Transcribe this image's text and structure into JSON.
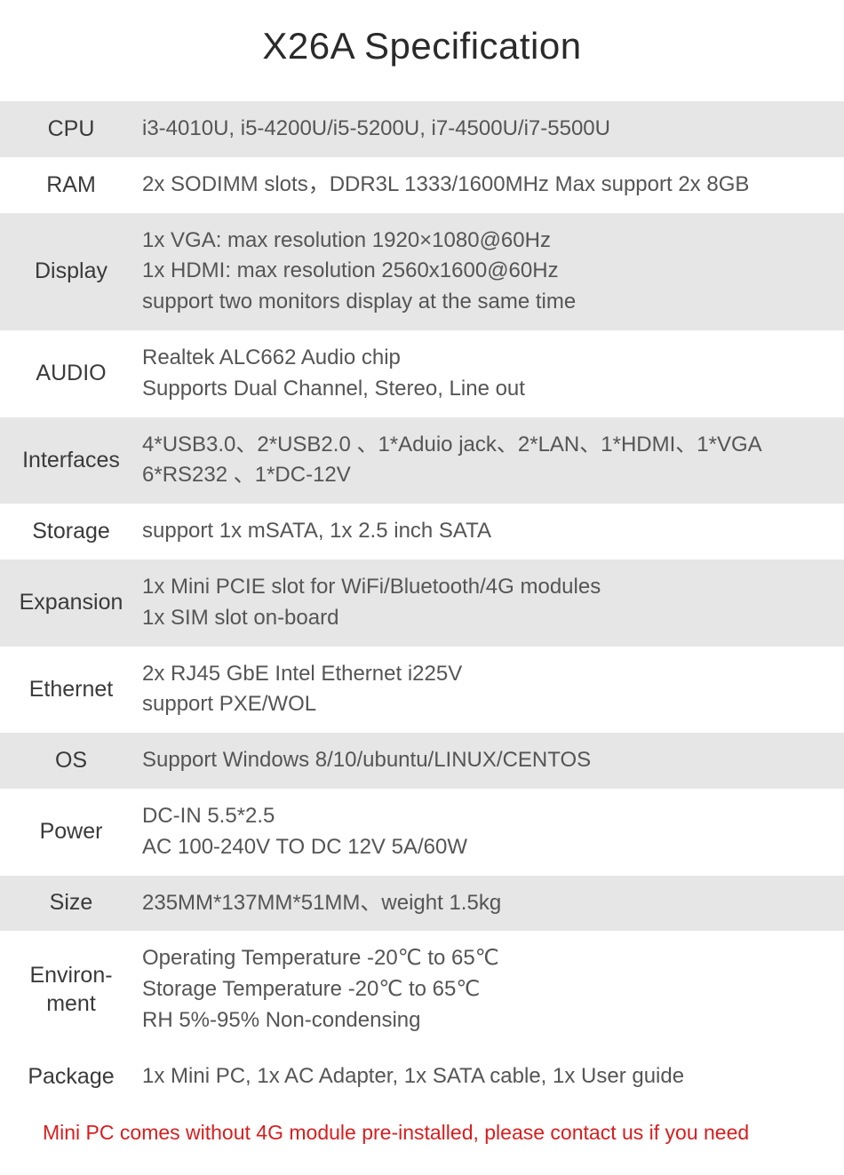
{
  "title": "X26A Specification",
  "colors": {
    "row_alt_bg": "#e6e6e6",
    "row_bg": "#ffffff",
    "title_color": "#2a2a2a",
    "label_color": "#3a3a3a",
    "value_color": "#555555",
    "footnote_color": "#d81e1e"
  },
  "typography": {
    "title_fontsize": 42,
    "label_fontsize": 25,
    "value_fontsize": 24,
    "footnote_fontsize": 23
  },
  "rows": [
    {
      "label": "CPU",
      "value": "i3-4010U, i5-4200U/i5-5200U, i7-4500U/i7-5500U",
      "alt": true
    },
    {
      "label": "RAM",
      "value": "2x SODIMM slots，DDR3L 1333/1600MHz  Max support 2x 8GB",
      "alt": false
    },
    {
      "label": "Display",
      "value": "1x VGA: max resolution 1920×1080@60Hz\n1x HDMI: max resolution 2560x1600@60Hz\nsupport two monitors display at the same time",
      "alt": true
    },
    {
      "label": "AUDIO",
      "value": "Realtek ALC662 Audio chip\nSupports Dual Channel, Stereo, Line out",
      "alt": false
    },
    {
      "label": "Interfaces",
      "value": "4*USB3.0、2*USB2.0 、1*Aduio jack、2*LAN、1*HDMI、1*VGA\n6*RS232 、1*DC-12V",
      "alt": true
    },
    {
      "label": "Storage",
      "value": "support 1x mSATA, 1x 2.5 inch SATA",
      "alt": false
    },
    {
      "label": "Expansion",
      "value": "1x Mini PCIE slot for WiFi/Bluetooth/4G modules\n1x SIM slot on-board",
      "alt": true
    },
    {
      "label": "Ethernet",
      "value": "2x RJ45 GbE Intel Ethernet i225V\nsupport PXE/WOL",
      "alt": false
    },
    {
      "label": "OS",
      "value": "Support Windows 8/10/ubuntu/LINUX/CENTOS",
      "alt": true
    },
    {
      "label": "Power",
      "value": "DC-IN 5.5*2.5\nAC 100-240V TO DC 12V 5A/60W",
      "alt": false
    },
    {
      "label": "Size",
      "value": "235MM*137MM*51MM、weight 1.5kg",
      "alt": true
    },
    {
      "label": "Environ-\nment",
      "value": "Operating Temperature -20℃ to 65℃\nStorage Temperature -20℃ to 65℃\nRH 5%-95% Non-condensing",
      "alt": false
    },
    {
      "label": "Package",
      "value": "1x Mini PC, 1x AC Adapter, 1x SATA cable, 1x User guide",
      "alt": false
    }
  ],
  "footnote": "Mini PC comes without 4G module pre-installed, please contact us if you need"
}
